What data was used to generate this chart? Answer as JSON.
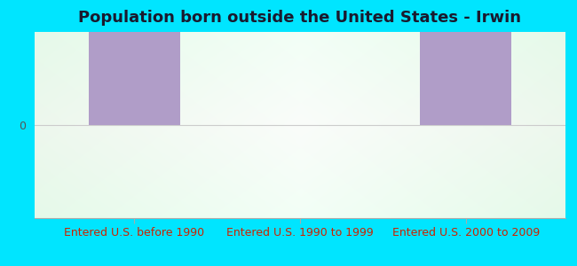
{
  "title": "Population born outside the United States - Irwin",
  "categories": [
    "Entered U.S. before 1990",
    "Entered U.S. 1990 to 1999",
    "Entered U.S. 2000 to 2009"
  ],
  "values": [
    1,
    0,
    1
  ],
  "bar_color": "#b09dc8",
  "bar_width": 0.55,
  "background_outer": "#00e5ff",
  "background_inner_left": "#c8f0d0",
  "background_inner_center": "#eef8f0",
  "title_color": "#1a1a2e",
  "xlabel_color": "#cc2200",
  "ytick_color": "#555555",
  "ylim_min": -1.0,
  "ylim_max": 1.0,
  "title_fontsize": 13,
  "xlabel_fontsize": 9,
  "figure_width": 6.5,
  "figure_height": 3.0,
  "dpi": 100
}
